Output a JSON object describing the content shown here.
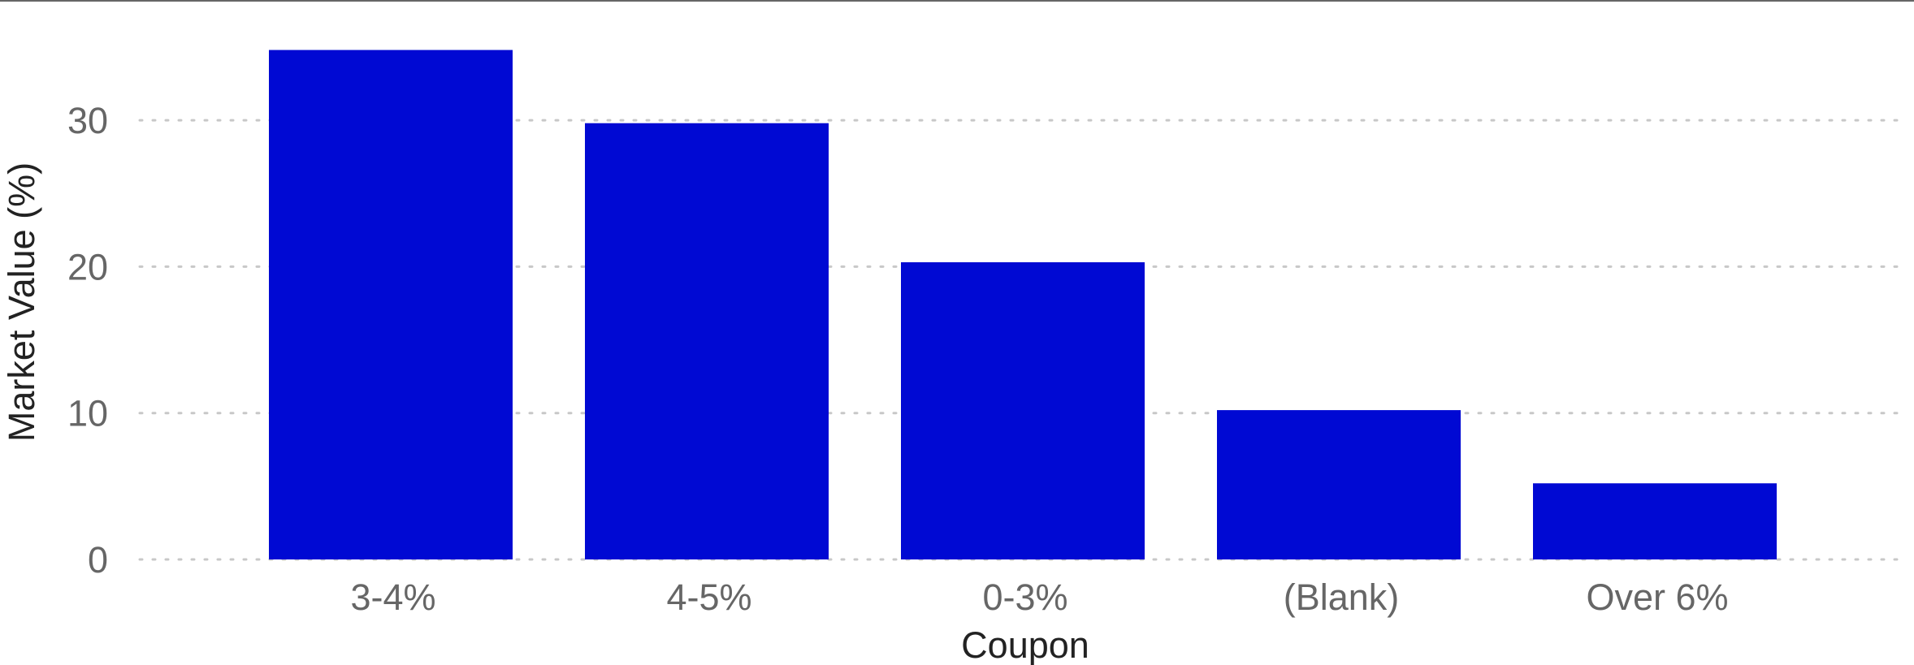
{
  "chart_data": {
    "type": "bar",
    "categories": [
      "3-4%",
      "4-5%",
      "0-3%",
      "(Blank)",
      "Over 6%"
    ],
    "values": [
      34.8,
      29.8,
      20.3,
      10.2,
      5.2
    ],
    "xlabel": "Coupon",
    "ylabel": "Market Value (%)",
    "ylim": [
      0,
      35
    ],
    "yticks": [
      0,
      10,
      20,
      30
    ],
    "grid": true,
    "bar_color": "#0009D3",
    "gridline_color": "#c8c8c8",
    "tick_label_color": "#666666",
    "axis_title_color": "#222222"
  }
}
